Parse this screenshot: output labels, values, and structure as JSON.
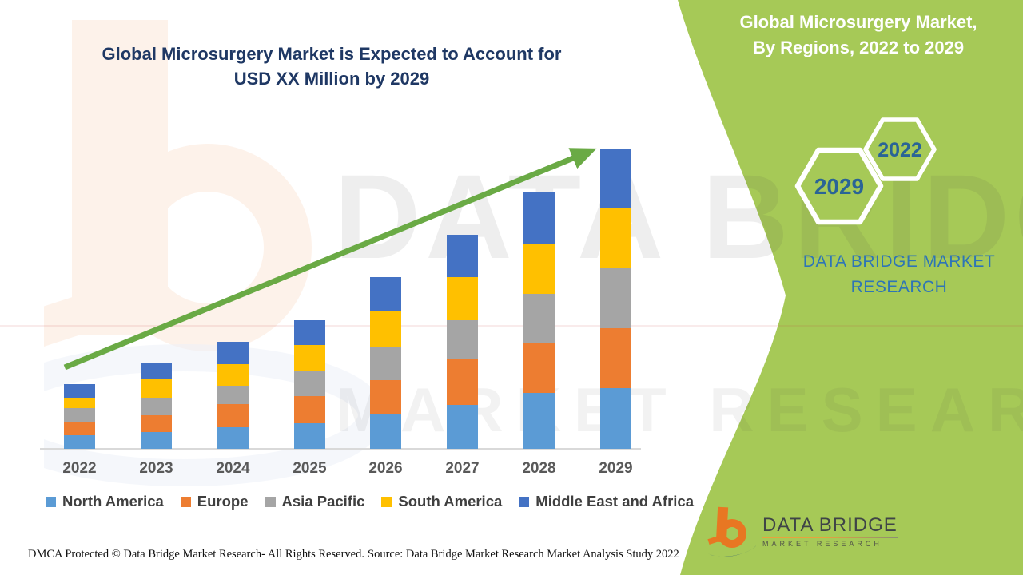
{
  "header": {
    "chart_title_line1": "Global Microsurgery Market is Expected to Account for",
    "chart_title_line2": "USD XX Million by 2029",
    "panel_title_line1": "Global Microsurgery Market,",
    "panel_title_line2": "By Regions, 2022 to 2029"
  },
  "panel": {
    "hex_large_year": "2029",
    "hex_small_year": "2022",
    "brand_line1": "DATA BRIDGE MARKET",
    "brand_line2": "RESEARCH"
  },
  "logo": {
    "name": "DATA BRIDGE",
    "sub": "MARKET RESEARCH"
  },
  "watermark": {
    "text_top": "DATA BRIDGE",
    "text_bottom": "MARKET RESEARCH"
  },
  "chart_data": {
    "type": "bar",
    "stacked": true,
    "title": "Global Microsurgery Market is Expected to Account for USD XX Million by 2029",
    "subtitle": "Global Microsurgery Market, By Regions, 2022 to 2029",
    "categories": [
      "2022",
      "2023",
      "2024",
      "2025",
      "2026",
      "2027",
      "2028",
      "2029"
    ],
    "series": [
      {
        "name": "North America",
        "color": "#5b9bd5",
        "values": [
          17,
          21,
          27,
          32,
          43,
          55,
          70,
          76
        ]
      },
      {
        "name": "Europe",
        "color": "#ed7d31",
        "values": [
          17,
          21,
          29,
          34,
          43,
          57,
          62,
          75
        ]
      },
      {
        "name": "Asia Pacific",
        "color": "#a5a5a5",
        "values": [
          17,
          22,
          23,
          31,
          41,
          49,
          62,
          75
        ]
      },
      {
        "name": "South America",
        "color": "#ffc000",
        "values": [
          13,
          23,
          27,
          33,
          45,
          54,
          63,
          76
        ]
      },
      {
        "name": "Middle East and Africa",
        "color": "#4472c4",
        "values": [
          17,
          21,
          28,
          31,
          43,
          53,
          64,
          73
        ]
      }
    ],
    "values_note": "relative heights; actual USD values masked as XX in source image",
    "xlabel": "",
    "ylabel": "",
    "value_axis_visible": false,
    "grid": false,
    "legend_position": "bottom",
    "trend_arrow": true
  },
  "footer": {
    "dmca": "DMCA Protected © Data Bridge Market Research- All Rights Reserved.",
    "source": "Source: Data Bridge Market Research Market Analysis Study 2022"
  },
  "colors": {
    "panel_green": "#a6c957",
    "arrow_green": "#6aaa45",
    "title_navy": "#1f3864",
    "hex_year_blue": "#2a6496",
    "brand_blue": "#2e75b6",
    "axis_label_gray": "#595959",
    "legend_text_gray": "#3f3f3f",
    "logo_orange": "#e87722",
    "logo_navy": "#1f4e79"
  }
}
